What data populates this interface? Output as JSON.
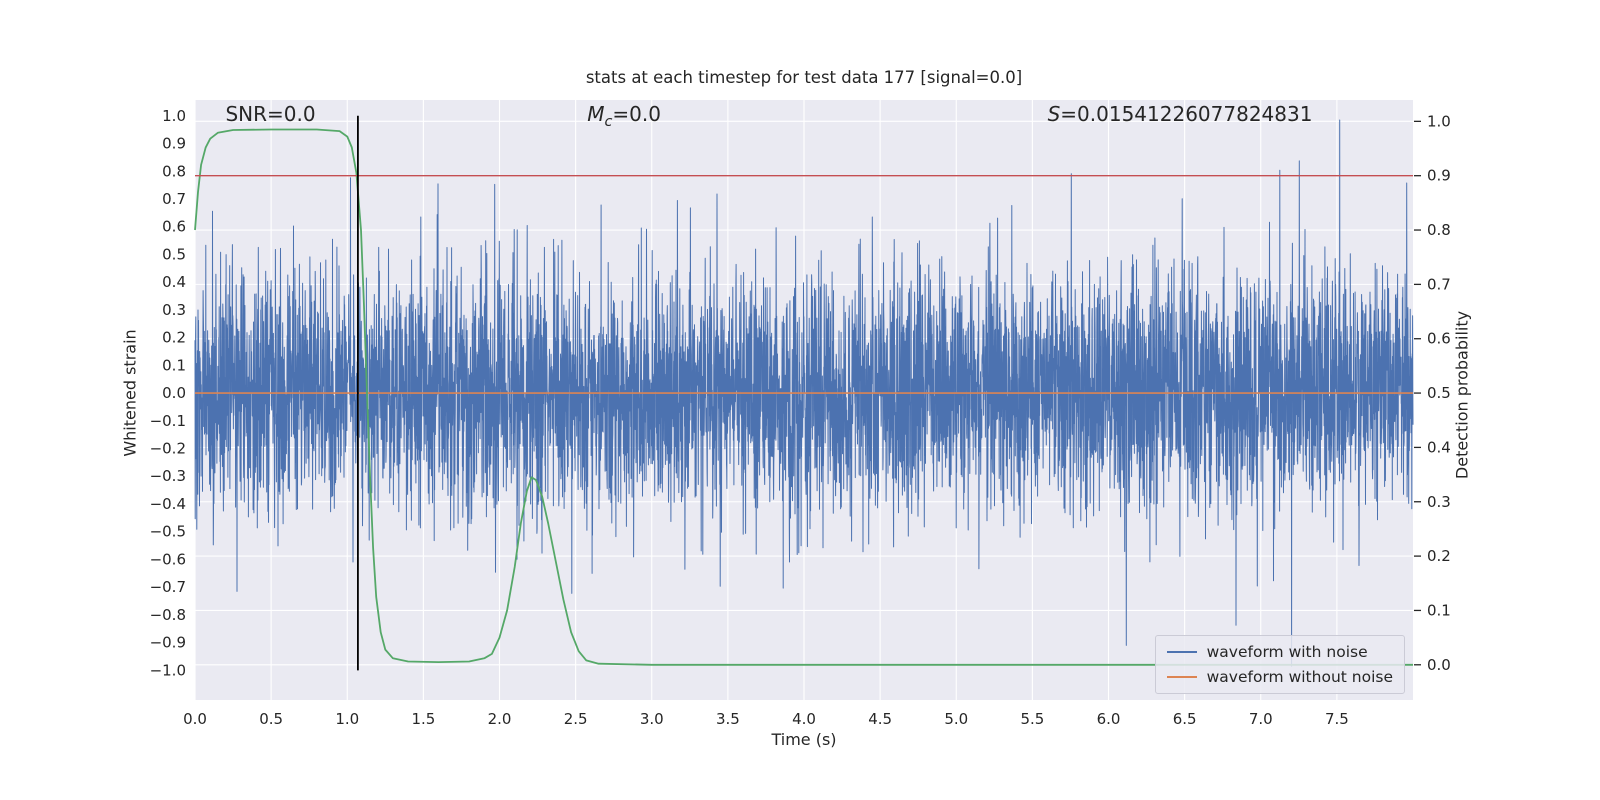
{
  "chart_data": {
    "type": "line",
    "title": "stats at each timestep for test data 177 [signal=0.0]",
    "xlabel": "Time (s)",
    "ylabel_left": "Whitened strain",
    "ylabel_right": "Detection probability",
    "xlim": [
      0.0,
      8.0
    ],
    "ylim_left": [
      -1.107,
      1.057
    ],
    "right_axis": {
      "scale": 1.96,
      "offset": -0.98
    },
    "plot_bg": "#EAEAF2",
    "grid_color": "#FFFFFF",
    "grid": true,
    "x_ticks": [
      {
        "v": 0.0,
        "label": "0.0"
      },
      {
        "v": 0.5,
        "label": "0.5"
      },
      {
        "v": 1.0,
        "label": "1.0"
      },
      {
        "v": 1.5,
        "label": "1.5"
      },
      {
        "v": 2.0,
        "label": "2.0"
      },
      {
        "v": 2.5,
        "label": "2.5"
      },
      {
        "v": 3.0,
        "label": "3.0"
      },
      {
        "v": 3.5,
        "label": "3.5"
      },
      {
        "v": 4.0,
        "label": "4.0"
      },
      {
        "v": 4.5,
        "label": "4.5"
      },
      {
        "v": 5.0,
        "label": "5.0"
      },
      {
        "v": 5.5,
        "label": "5.5"
      },
      {
        "v": 6.0,
        "label": "6.0"
      },
      {
        "v": 6.5,
        "label": "6.5"
      },
      {
        "v": 7.0,
        "label": "7.0"
      },
      {
        "v": 7.5,
        "label": "7.5"
      }
    ],
    "left_ticks": [
      {
        "v": 1.0,
        "label": "1.0"
      },
      {
        "v": 0.9,
        "label": "0.9"
      },
      {
        "v": 0.8,
        "label": "0.8"
      },
      {
        "v": 0.7,
        "label": "0.7"
      },
      {
        "v": 0.6,
        "label": "0.6"
      },
      {
        "v": 0.5,
        "label": "0.5"
      },
      {
        "v": 0.4,
        "label": "0.4"
      },
      {
        "v": 0.3,
        "label": "0.3"
      },
      {
        "v": 0.2,
        "label": "0.2"
      },
      {
        "v": 0.1,
        "label": "0.1"
      },
      {
        "v": 0.0,
        "label": "0.0"
      },
      {
        "v": -0.1,
        "label": "−0.1"
      },
      {
        "v": -0.2,
        "label": "−0.2"
      },
      {
        "v": -0.3,
        "label": "−0.3"
      },
      {
        "v": -0.4,
        "label": "−0.4"
      },
      {
        "v": -0.5,
        "label": "−0.5"
      },
      {
        "v": -0.6,
        "label": "−0.6"
      },
      {
        "v": -0.7,
        "label": "−0.7"
      },
      {
        "v": -0.8,
        "label": "−0.8"
      },
      {
        "v": -0.9,
        "label": "−0.9"
      },
      {
        "v": -1.0,
        "label": "−1.0"
      }
    ],
    "right_ticks": [
      {
        "v": 1.0,
        "label": "1.0"
      },
      {
        "v": 0.9,
        "label": "0.9"
      },
      {
        "v": 0.8,
        "label": "0.8"
      },
      {
        "v": 0.7,
        "label": "0.7"
      },
      {
        "v": 0.6,
        "label": "0.6"
      },
      {
        "v": 0.5,
        "label": "0.5"
      },
      {
        "v": 0.4,
        "label": "0.4"
      },
      {
        "v": 0.3,
        "label": "0.3"
      },
      {
        "v": 0.2,
        "label": "0.2"
      },
      {
        "v": 0.1,
        "label": "0.1"
      },
      {
        "v": 0.0,
        "label": "0.0"
      }
    ],
    "series": [
      {
        "id": "noise",
        "name": "waveform with noise",
        "color": "#4C72B0",
        "axis": "left",
        "type": "gaussian_noise",
        "n": 6000,
        "sigma": 0.21,
        "tail_sigma": 0.42,
        "tail_prob": 0.015,
        "clip": 0.985,
        "seed": 20177
      },
      {
        "id": "pure",
        "name": "waveform without noise",
        "color": "#DD8452",
        "axis": "left",
        "type": "constant",
        "value": 0.0
      },
      {
        "id": "detprob",
        "name": "detection probability",
        "color": "#55A868",
        "axis": "right",
        "type": "points",
        "points": [
          [
            0.0,
            0.8
          ],
          [
            0.02,
            0.87
          ],
          [
            0.04,
            0.92
          ],
          [
            0.07,
            0.952
          ],
          [
            0.1,
            0.968
          ],
          [
            0.15,
            0.979
          ],
          [
            0.25,
            0.984
          ],
          [
            0.5,
            0.985
          ],
          [
            0.8,
            0.985
          ],
          [
            0.95,
            0.982
          ],
          [
            1.0,
            0.972
          ],
          [
            1.03,
            0.952
          ],
          [
            1.06,
            0.905
          ],
          [
            1.09,
            0.8
          ],
          [
            1.11,
            0.66
          ],
          [
            1.13,
            0.5
          ],
          [
            1.15,
            0.345
          ],
          [
            1.17,
            0.215
          ],
          [
            1.19,
            0.125
          ],
          [
            1.22,
            0.06
          ],
          [
            1.25,
            0.028
          ],
          [
            1.3,
            0.012
          ],
          [
            1.4,
            0.006
          ],
          [
            1.6,
            0.005
          ],
          [
            1.8,
            0.006
          ],
          [
            1.9,
            0.012
          ],
          [
            1.95,
            0.02
          ],
          [
            2.0,
            0.05
          ],
          [
            2.05,
            0.1
          ],
          [
            2.1,
            0.18
          ],
          [
            2.14,
            0.26
          ],
          [
            2.18,
            0.32
          ],
          [
            2.21,
            0.345
          ],
          [
            2.24,
            0.34
          ],
          [
            2.28,
            0.31
          ],
          [
            2.32,
            0.26
          ],
          [
            2.37,
            0.19
          ],
          [
            2.42,
            0.12
          ],
          [
            2.47,
            0.06
          ],
          [
            2.52,
            0.025
          ],
          [
            2.57,
            0.008
          ],
          [
            2.65,
            0.002
          ],
          [
            3.0,
            0.0
          ],
          [
            8.0,
            0.0
          ]
        ]
      },
      {
        "id": "threshold",
        "name": "detection threshold",
        "color": "#C44E52",
        "axis": "right",
        "type": "hline",
        "value": 0.9
      },
      {
        "id": "marker",
        "name": "time marker",
        "color": "#000000",
        "axis": "x",
        "type": "vline",
        "value": 1.07
      }
    ],
    "annotations": [
      {
        "text": "SNR=0.0",
        "x_frac": 0.025
      },
      {
        "base": "M",
        "sub": "c",
        "rest": "=0.0",
        "x_frac": 0.322
      },
      {
        "base": "S",
        "rest": "=0.01541226077824831",
        "x_frac": 0.7
      }
    ],
    "legend": {
      "position": "lower right",
      "items": [
        {
          "label": "waveform with noise",
          "color": "#4C72B0"
        },
        {
          "label": "waveform without noise",
          "color": "#DD8452"
        }
      ]
    }
  }
}
